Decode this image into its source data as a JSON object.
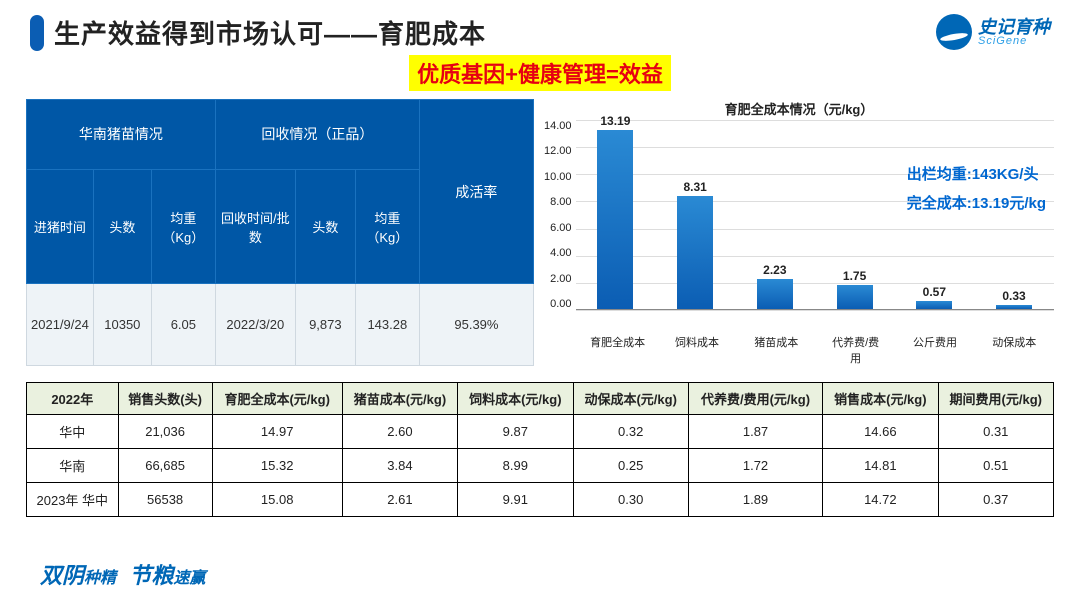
{
  "header": {
    "title": "生产效益得到市场认可——育肥成本",
    "logo_cn": "史记育种",
    "logo_en": "SciGene",
    "subtitle": "优质基因+健康管理=效益"
  },
  "blue_table": {
    "group1": "华南猪苗情况",
    "group2": "回收情况（正品）",
    "col7_head": "成活率",
    "sub": [
      "进猪时间",
      "头数",
      "均重（Kg）",
      "回收时间/批数",
      "头数",
      "均重（Kg）"
    ],
    "row": [
      "2021/9/24",
      "10350",
      "6.05",
      "2022/3/20",
      "9,873",
      "143.28",
      "95.39%"
    ]
  },
  "chart": {
    "title": "育肥全成本情况（元/kg）",
    "ylabels": [
      "14.00",
      "12.00",
      "10.00",
      "8.00",
      "6.00",
      "4.00",
      "2.00",
      "0.00"
    ],
    "ymax": 14.0,
    "categories": [
      "育肥全成本",
      "饲料成本",
      "猪苗成本",
      "代养费/费用",
      "公斤费用",
      "动保成本"
    ],
    "values": [
      13.19,
      8.31,
      2.23,
      1.75,
      0.57,
      0.33
    ],
    "note1": "出栏均重:143KG/头",
    "note2": "完全成本:13.19元/kg"
  },
  "data_table": {
    "headers": [
      "2022年",
      "销售头数(头)",
      "育肥全成本(元/kg)",
      "猪苗成本(元/kg)",
      "饲料成本(元/kg)",
      "动保成本(元/kg)",
      "代养费/费用(元/kg)",
      "销售成本(元/kg)",
      "期间费用(元/kg)"
    ],
    "rows": [
      [
        "华中",
        "21,036",
        "14.97",
        "2.60",
        "9.87",
        "0.32",
        "1.87",
        "14.66",
        "0.31"
      ],
      [
        "华南",
        "66,685",
        "15.32",
        "3.84",
        "8.99",
        "0.25",
        "1.72",
        "14.81",
        "0.51"
      ],
      [
        "2023年 华中",
        "56538",
        "15.08",
        "2.61",
        "9.91",
        "0.30",
        "1.89",
        "14.72",
        "0.37"
      ]
    ]
  },
  "footer": {
    "p1a": "双阴",
    "p1b": "种精",
    "p2a": "节粮",
    "p2b": "速赢"
  }
}
